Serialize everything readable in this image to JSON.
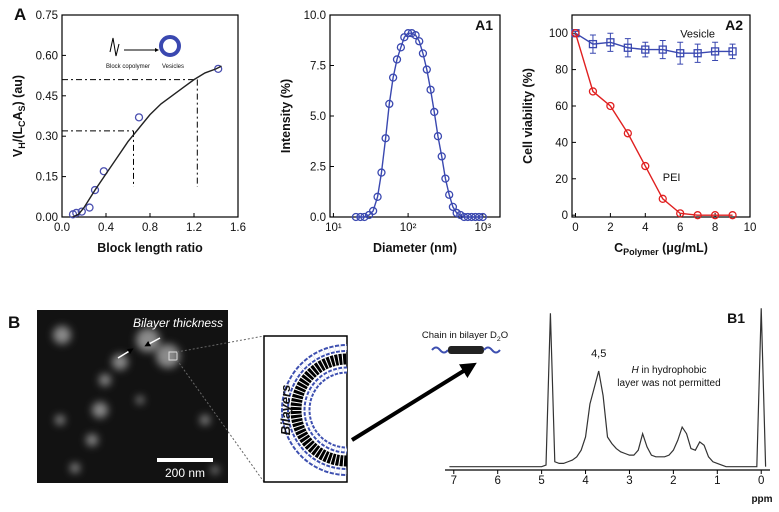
{
  "chart_data": [
    {
      "type": "scatter",
      "title": "A",
      "xlabel": "Block length ratio",
      "ylabel": [
        "V",
        "H",
        "/(L",
        "C",
        "A",
        "S",
        ") (au)"
      ],
      "xlim": [
        0,
        1.6
      ],
      "xticks": [
        {
          "value": 0,
          "label": "0.0"
        },
        0.4,
        0.8,
        1.2,
        1.6
      ],
      "ylim": [
        0,
        0.75
      ],
      "yticks": [
        {
          "value": 0,
          "label": "0.00"
        },
        0.15,
        {
          "value": 0.3,
          "label": "0.30"
        },
        0.45,
        {
          "value": 0.6,
          "label": "0.60"
        },
        0.75
      ],
      "series": [
        {
          "color": "#4a4fb0",
          "marker": "circle",
          "x": [
            0.1,
            0.13,
            0.18,
            0.25,
            0.3,
            0.38,
            0.7,
            1.42
          ],
          "values": [
            0.01,
            0.015,
            0.02,
            0.035,
            0.1,
            0.17,
            0.37,
            0.55
          ]
        },
        {
          "color": "#222222",
          "x": [
            0.1,
            0.15,
            0.2,
            0.3,
            0.4,
            0.5,
            0.6,
            0.7,
            0.8,
            0.9,
            1.0,
            1.1,
            1.2,
            1.3,
            1.4,
            1.45
          ],
          "values": [
            0,
            0.01,
            0.035,
            0.1,
            0.16,
            0.22,
            0.28,
            0.33,
            0.38,
            0.42,
            0.45,
            0.48,
            0.51,
            0.535,
            0.55,
            0.56
          ]
        }
      ],
      "guides": [
        {
          "x": 0.65,
          "y": 0.32
        },
        {
          "x": 1.23,
          "y": 0.51
        }
      ],
      "inset": [
        "Block copolymer",
        "Vesicles"
      ]
    },
    {
      "type": "line",
      "title": "A1",
      "xlabel": "Diameter (nm)",
      "ylabel": [
        "Intensity (%)"
      ],
      "xscale": "log",
      "xlim": [
        9,
        1700
      ],
      "xticks": [
        {
          "value": 10,
          "label": "10¹"
        },
        {
          "value": 100,
          "label": "10²"
        },
        {
          "value": 1000,
          "label": "10³"
        }
      ],
      "ylim": [
        0,
        10
      ],
      "yticks": [
        {
          "value": 0,
          "label": "0.0"
        },
        2.5,
        {
          "value": 5,
          "label": "5.0"
        },
        7.5,
        {
          "value": 10,
          "label": "10.0"
        }
      ],
      "x": [
        20,
        23,
        26,
        30,
        34,
        39,
        44,
        50,
        56,
        63,
        71,
        80,
        89,
        100,
        112,
        126,
        141,
        158,
        178,
        200,
        224,
        251,
        282,
        316,
        355,
        398,
        447,
        501,
        562,
        631,
        708,
        794,
        891,
        1000
      ],
      "series": [
        {
          "color": "#3a48b0",
          "marker": "circle",
          "values": [
            0,
            0,
            0,
            0.1,
            0.3,
            1.0,
            2.2,
            3.9,
            5.6,
            6.9,
            7.8,
            8.4,
            8.9,
            9.1,
            9.1,
            9.0,
            8.7,
            8.1,
            7.3,
            6.3,
            5.2,
            4.0,
            3.0,
            1.9,
            1.1,
            0.5,
            0.2,
            0.1,
            0,
            0,
            0,
            0,
            0,
            0
          ]
        }
      ]
    },
    {
      "type": "line",
      "title": "A2",
      "xlabel": [
        "C",
        "Polymer",
        " (μg/mL)"
      ],
      "ylabel": [
        "Cell viability (%)"
      ],
      "xlim": [
        -0.2,
        10
      ],
      "xticks": [
        0,
        2,
        4,
        6,
        8,
        10
      ],
      "ylim": [
        -1,
        110
      ],
      "yticks": [
        0,
        20,
        40,
        60,
        80,
        100
      ],
      "x": [
        0,
        1,
        2,
        3,
        4,
        5,
        6,
        7,
        8,
        9
      ],
      "series": [
        {
          "name": "Vesicle",
          "color": "#3a48b0",
          "marker": "square",
          "values": [
            100,
            94,
            95,
            92,
            91,
            91,
            89,
            89,
            90,
            90
          ],
          "errors": [
            1,
            5,
            5,
            5,
            4,
            5,
            6,
            5,
            5,
            4
          ]
        },
        {
          "name": "PEI",
          "color": "#e02020",
          "marker": "circle",
          "values": [
            100,
            68,
            60,
            45,
            27,
            9,
            1,
            0,
            0,
            0
          ]
        }
      ]
    },
    {
      "type": "line",
      "title": "B1",
      "xlabel": "ppm",
      "reverse_x": true,
      "xlim": [
        7.2,
        -0.2
      ],
      "xticks": [
        7,
        6,
        5,
        4,
        3,
        2,
        1,
        0
      ],
      "ylim": [
        0,
        100
      ],
      "x": [
        7.1,
        7.0,
        6.9,
        6.8,
        6.7,
        6.6,
        6.5,
        6.4,
        6.3,
        6.2,
        6.1,
        6.0,
        5.9,
        5.8,
        5.7,
        5.6,
        5.5,
        5.4,
        5.3,
        5.2,
        5.1,
        5.0,
        4.9,
        4.8,
        4.7,
        4.6,
        4.5,
        4.4,
        4.3,
        4.2,
        4.1,
        4.0,
        3.9,
        3.8,
        3.7,
        3.6,
        3.5,
        3.4,
        3.3,
        3.2,
        3.1,
        3.0,
        2.9,
        2.8,
        2.7,
        2.6,
        2.5,
        2.4,
        2.3,
        2.2,
        2.1,
        2.0,
        1.9,
        1.8,
        1.7,
        1.6,
        1.5,
        1.4,
        1.3,
        1.2,
        1.1,
        1.0,
        0.9,
        0.8,
        0.7,
        0.6,
        0.5,
        0.4,
        0.3,
        0.2,
        0.1,
        0.0,
        -0.1
      ],
      "series": [
        {
          "color": "#333333",
          "values": [
            2,
            2,
            2,
            2,
            2,
            2,
            2,
            2,
            2,
            2,
            2,
            2,
            2,
            2,
            2,
            2,
            2,
            2,
            2,
            2,
            2,
            2,
            3,
            95,
            5,
            4,
            4,
            5,
            6,
            8,
            12,
            20,
            40,
            50,
            60,
            45,
            20,
            16,
            13,
            11,
            10,
            9,
            9,
            12,
            22,
            14,
            9,
            8,
            8,
            8,
            9,
            12,
            18,
            26,
            22,
            13,
            12,
            17,
            15,
            8,
            5,
            4,
            3,
            2,
            2,
            2,
            2,
            2,
            2,
            2,
            2,
            98,
            2
          ]
        }
      ],
      "peak_label": "4,5",
      "note": [
        "H",
        " in hydrophobic",
        "layer was not permitted"
      ],
      "chain_label": [
        "Chain in bilayer D",
        "2",
        "O"
      ]
    }
  ],
  "image": {
    "label": "B",
    "annotation": "Bilayer thickness",
    "scale_bar": "200 nm",
    "zoom_label": "Bilayers"
  }
}
